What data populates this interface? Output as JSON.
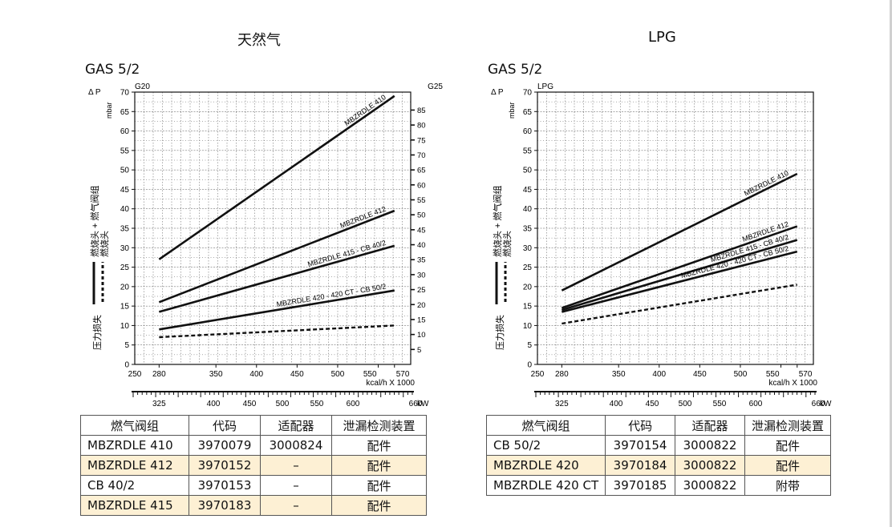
{
  "panels": [
    {
      "heading": "天然气",
      "sub": "GAS 5/2",
      "chart_data": {
        "type": "line",
        "x_kw": [
          280,
          570
        ],
        "ylim": [
          0,
          70
        ],
        "yticks": [
          0,
          5,
          10,
          15,
          20,
          25,
          30,
          35,
          40,
          45,
          50,
          55,
          60,
          65,
          70
        ],
        "ylabel_top": "Δ P",
        "yunit": "mbar",
        "gas_left": "G20",
        "gas_right": "G25",
        "right_ticks": [
          5,
          10,
          15,
          20,
          25,
          30,
          35,
          40,
          45,
          50,
          55,
          60,
          65,
          70,
          75,
          80,
          85
        ],
        "right_max": 91,
        "kcal_ticks": [
          280,
          350,
          400,
          450,
          500,
          550,
          570
        ],
        "kcal_left_label": "250",
        "kcal_unit": "kcal/h X 1000",
        "kw_ticks": [
          "325",
          "400",
          "450",
          "500",
          "550",
          "600",
          "660"
        ],
        "kw_unit": "kW",
        "legend_solid": "燃烧头 + 燃气阀组",
        "legend_dashed": "燃烧头",
        "legend_bottom": "压力损失",
        "series": [
          {
            "name": "MBZRDLE 410",
            "x": [
              280,
              570
            ],
            "y": [
              27,
              69
            ],
            "style": "solid"
          },
          {
            "name": "MBZRDLE 412",
            "x": [
              280,
              570
            ],
            "y": [
              16,
              39.5
            ],
            "style": "solid"
          },
          {
            "name": "MBZRDLE 415 - CB 40/2",
            "x": [
              280,
              570
            ],
            "y": [
              13.5,
              30.5
            ],
            "style": "solid"
          },
          {
            "name": "MBZRDLE 420 - 420 CT - CB 50/2",
            "x": [
              280,
              570
            ],
            "y": [
              9,
              19
            ],
            "style": "solid"
          },
          {
            "name": "",
            "x": [
              280,
              570
            ],
            "y": [
              7,
              10
            ],
            "style": "dashed"
          }
        ]
      },
      "table": {
        "headers": [
          "燃气阀组",
          "代码",
          "适配器",
          "泄漏检测装置"
        ],
        "rows": [
          [
            "MBZRDLE 410",
            "3970079",
            "3000824",
            "配件"
          ],
          [
            "MBZRDLE 412",
            "3970152",
            "–",
            "配件"
          ],
          [
            "CB 40/2",
            "3970153",
            "–",
            "配件"
          ],
          [
            "MBZRDLE 415",
            "3970183",
            "–",
            "配件"
          ]
        ]
      }
    },
    {
      "heading": "LPG",
      "sub": "GAS 5/2",
      "chart_data": {
        "type": "line",
        "x_kw": [
          280,
          570
        ],
        "ylim": [
          0,
          70
        ],
        "yticks": [
          0,
          5,
          10,
          15,
          20,
          25,
          30,
          35,
          40,
          45,
          50,
          55,
          60,
          65,
          70
        ],
        "ylabel_top": "Δ P",
        "yunit": "mbar",
        "gas_left": "LPG",
        "gas_right": "",
        "right_ticks": [],
        "right_max": 91,
        "kcal_ticks": [
          280,
          350,
          400,
          450,
          500,
          550,
          570
        ],
        "kcal_left_label": "250",
        "kcal_unit": "kcal/h X 1000",
        "kw_ticks": [
          "325",
          "400",
          "450",
          "500",
          "550",
          "600",
          "660"
        ],
        "kw_unit": "kW",
        "legend_solid": "燃烧头 + 燃气阀组",
        "legend_dashed": "燃烧头",
        "legend_bottom": "压力损失",
        "series": [
          {
            "name": "MBZRDLE 410",
            "x": [
              280,
              570
            ],
            "y": [
              19,
              49
            ],
            "style": "solid"
          },
          {
            "name": "MBZRDLE 412",
            "x": [
              280,
              570
            ],
            "y": [
              14.5,
              35.5
            ],
            "style": "solid"
          },
          {
            "name": "MBZRDLE 415 - CB 40/2",
            "x": [
              280,
              570
            ],
            "y": [
              14,
              32
            ],
            "style": "solid"
          },
          {
            "name": "MBZRDLE 420 - 420 CT - CB 50/2",
            "x": [
              280,
              570
            ],
            "y": [
              13.5,
              29
            ],
            "style": "solid"
          },
          {
            "name": "",
            "x": [
              280,
              570
            ],
            "y": [
              10.5,
              20.5
            ],
            "style": "dashed"
          }
        ]
      },
      "table": {
        "headers": [
          "燃气阀组",
          "代码",
          "适配器",
          "泄漏检测装置"
        ],
        "rows": [
          [
            "CB 50/2",
            "3970154",
            "3000822",
            "配件"
          ],
          [
            "MBZRDLE 420",
            "3970184",
            "3000822",
            "配件"
          ],
          [
            "MBZRDLE 420 CT",
            "3970185",
            "3000822",
            "附带"
          ]
        ]
      }
    }
  ]
}
